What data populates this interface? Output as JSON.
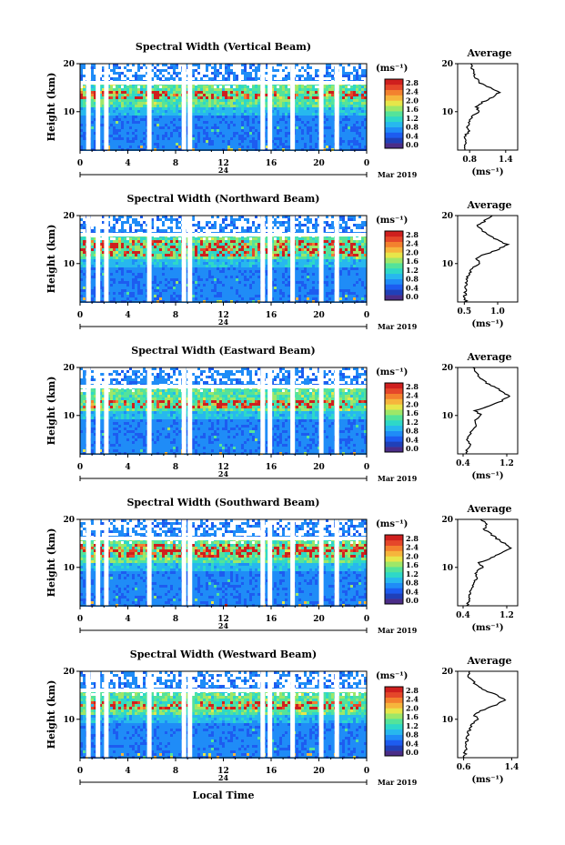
{
  "figure": {
    "date_label": "Mar 2019",
    "date_tick": "24",
    "xlabel": "Local Time",
    "ylabel": "Height (km)",
    "avg_title": "Average",
    "unit": "(ms⁻¹)"
  },
  "colorbar": {
    "ticks": [
      "2.8",
      "2.4",
      "2.0",
      "1.6",
      "1.2",
      "0.8",
      "0.4",
      "0.0"
    ],
    "colors": [
      "#4b2d88",
      "#2040b8",
      "#1d5cf0",
      "#1f8cf7",
      "#27b8ee",
      "#2ed8c8",
      "#54e39a",
      "#9ee768",
      "#e7e64a",
      "#f6b53c",
      "#f3812e",
      "#e5472a",
      "#cf1f1e"
    ]
  },
  "chart_data": [
    {
      "type": "heatmap",
      "title": "Spectral Width (Vertical Beam)",
      "xlabel": "Local Time",
      "ylabel": "Height (km)",
      "xlim": [
        0,
        24
      ],
      "ylim": [
        2,
        20
      ],
      "x_ticks": [
        "0",
        "4",
        "8",
        "12",
        "16",
        "20",
        "0"
      ],
      "y_ticks": [
        "20",
        "10"
      ],
      "colorbar_range": [
        0.0,
        2.8
      ],
      "gap_hours": [
        0.7,
        1.5,
        2.2,
        5.8,
        8.7,
        9.2,
        15.3,
        15.9,
        17.8,
        20.2,
        21.5
      ],
      "hotspot_heights_km": [
        13.5
      ],
      "average_profile": {
        "xlim": [
          0.6,
          1.6
        ],
        "x_ticks": [
          "0.8",
          "1.4"
        ],
        "heights_km": [
          2,
          3,
          4,
          5,
          6,
          7,
          8,
          9,
          10,
          11,
          12,
          13,
          14,
          15,
          16,
          17,
          18,
          19,
          20
        ],
        "values": [
          0.7,
          0.72,
          0.72,
          0.74,
          0.78,
          0.76,
          0.8,
          0.84,
          0.96,
          0.92,
          1.02,
          1.18,
          1.28,
          1.14,
          0.98,
          0.9,
          0.86,
          0.84,
          0.82
        ]
      }
    },
    {
      "type": "heatmap",
      "title": "Spectral Width (Northward Beam)",
      "xlabel": "Local Time",
      "ylabel": "Height (km)",
      "xlim": [
        0,
        24
      ],
      "ylim": [
        2,
        20
      ],
      "x_ticks": [
        "0",
        "4",
        "8",
        "12",
        "16",
        "20",
        "0"
      ],
      "y_ticks": [
        "20",
        "10"
      ],
      "colorbar_range": [
        0.0,
        2.8
      ],
      "gap_hours": [
        0.7,
        1.5,
        2.2,
        5.8,
        8.7,
        9.2,
        15.3,
        15.9,
        17.8,
        20.2,
        21.5
      ],
      "hotspot_heights_km": [
        12.5,
        14.0
      ],
      "average_profile": {
        "xlim": [
          0.4,
          1.3
        ],
        "x_ticks": [
          "0.5",
          "1.0"
        ],
        "heights_km": [
          2,
          3,
          4,
          5,
          6,
          7,
          8,
          9,
          10,
          11,
          12,
          13,
          14,
          15,
          16,
          17,
          18,
          19,
          20
        ],
        "values": [
          0.52,
          0.5,
          0.52,
          0.5,
          0.54,
          0.55,
          0.58,
          0.62,
          0.74,
          0.66,
          0.82,
          1.02,
          1.14,
          1.0,
          0.84,
          0.78,
          0.7,
          0.82,
          0.92
        ]
      }
    },
    {
      "type": "heatmap",
      "title": "Spectral Width (Eastward Beam)",
      "xlabel": "Local Time",
      "ylabel": "Height (km)",
      "xlim": [
        0,
        24
      ],
      "ylim": [
        2,
        20
      ],
      "x_ticks": [
        "0",
        "4",
        "8",
        "12",
        "16",
        "20",
        "0"
      ],
      "y_ticks": [
        "20",
        "10"
      ],
      "colorbar_range": [
        0.0,
        2.8
      ],
      "gap_hours": [
        0.7,
        1.5,
        2.2,
        5.8,
        8.7,
        9.2,
        15.3,
        15.9,
        17.8,
        20.2,
        21.5
      ],
      "hotspot_heights_km": [
        12.5
      ],
      "average_profile": {
        "xlim": [
          0.3,
          1.4
        ],
        "x_ticks": [
          "0.4",
          "1.2"
        ],
        "heights_km": [
          2,
          3,
          4,
          5,
          6,
          7,
          8,
          9,
          10,
          11,
          12,
          13,
          14,
          15,
          16,
          17,
          18,
          19,
          20
        ],
        "values": [
          0.46,
          0.48,
          0.52,
          0.48,
          0.52,
          0.56,
          0.66,
          0.6,
          0.74,
          0.62,
          0.86,
          1.1,
          1.24,
          1.12,
          0.96,
          0.8,
          0.7,
          0.62,
          0.58
        ]
      }
    },
    {
      "type": "heatmap",
      "title": "Spectral Width (Southward Beam)",
      "xlabel": "Local Time",
      "ylabel": "Height (km)",
      "xlim": [
        0,
        24
      ],
      "ylim": [
        2,
        20
      ],
      "x_ticks": [
        "0",
        "4",
        "8",
        "12",
        "16",
        "20",
        "0"
      ],
      "y_ticks": [
        "20",
        "10"
      ],
      "colorbar_range": [
        0.0,
        2.8
      ],
      "gap_hours": [
        0.7,
        1.5,
        2.2,
        5.8,
        8.7,
        9.2,
        15.3,
        15.9,
        17.8,
        20.2,
        21.5
      ],
      "hotspot_heights_km": [
        13.0,
        14.2
      ],
      "average_profile": {
        "xlim": [
          0.3,
          1.4
        ],
        "x_ticks": [
          "0.4",
          "1.2"
        ],
        "heights_km": [
          2,
          3,
          4,
          5,
          6,
          7,
          8,
          9,
          10,
          11,
          12,
          13,
          14,
          15,
          16,
          17,
          18,
          19,
          20
        ],
        "values": [
          0.48,
          0.5,
          0.52,
          0.54,
          0.58,
          0.6,
          0.66,
          0.64,
          0.76,
          0.7,
          0.92,
          1.12,
          1.26,
          1.16,
          1.02,
          0.9,
          0.78,
          0.84,
          0.72
        ]
      }
    },
    {
      "type": "heatmap",
      "title": "Spectral Width (Westward Beam)",
      "xlabel": "Local Time",
      "ylabel": "Height (km)",
      "xlim": [
        0,
        24
      ],
      "ylim": [
        2,
        20
      ],
      "x_ticks": [
        "0",
        "4",
        "8",
        "12",
        "16",
        "20",
        "0"
      ],
      "y_ticks": [
        "20",
        "10"
      ],
      "colorbar_range": [
        0.0,
        2.8
      ],
      "gap_hours": [
        0.7,
        1.5,
        2.2,
        5.8,
        8.7,
        9.2,
        15.3,
        15.9,
        17.8,
        20.2,
        21.5
      ],
      "hotspot_heights_km": [
        13.0
      ],
      "average_profile": {
        "xlim": [
          0.5,
          1.5
        ],
        "x_ticks": [
          "0.6",
          "1.4"
        ],
        "heights_km": [
          2,
          3,
          4,
          5,
          6,
          7,
          8,
          9,
          10,
          11,
          12,
          13,
          14,
          15,
          16,
          17,
          18,
          19,
          20
        ],
        "values": [
          0.62,
          0.62,
          0.64,
          0.64,
          0.66,
          0.68,
          0.7,
          0.74,
          0.84,
          0.76,
          0.94,
          1.14,
          1.3,
          1.16,
          0.96,
          0.84,
          0.74,
          0.68,
          0.7
        ]
      }
    }
  ]
}
